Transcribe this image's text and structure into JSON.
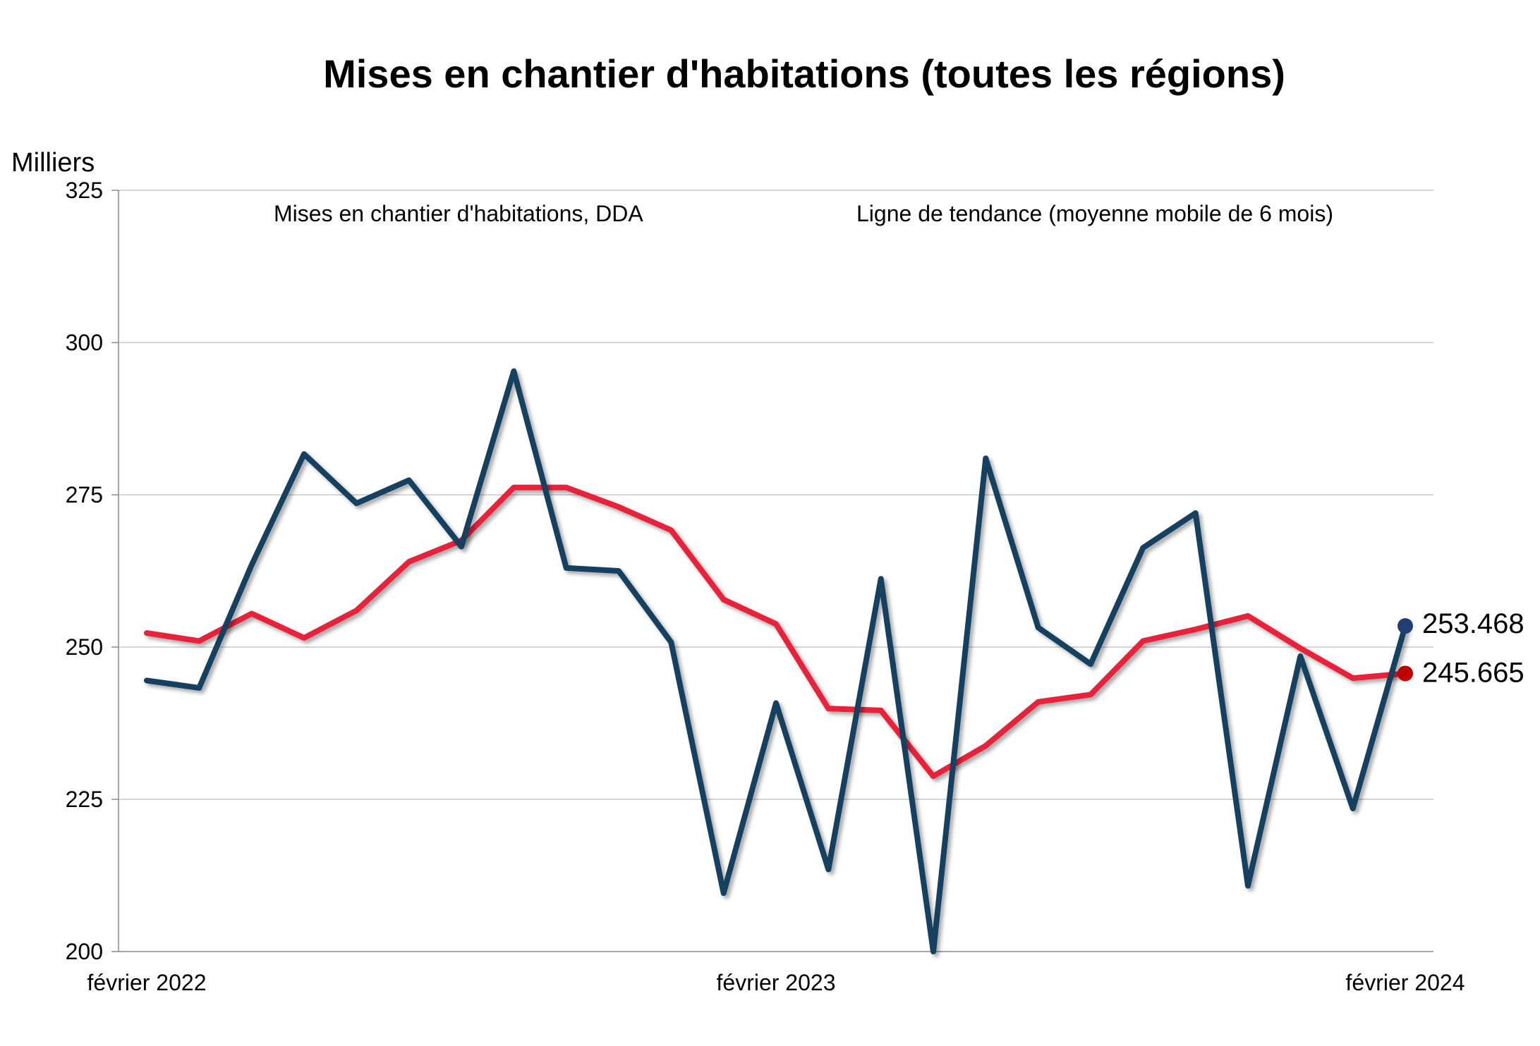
{
  "chart_data": {
    "type": "line",
    "title": "Mises en chantier d'habitations (toutes les régions)",
    "ylabel": "Milliers",
    "ylim": [
      200,
      325
    ],
    "yticks": [
      200,
      225,
      250,
      275,
      300,
      325
    ],
    "x": [
      "2022-02",
      "2022-03",
      "2022-04",
      "2022-05",
      "2022-06",
      "2022-07",
      "2022-08",
      "2022-09",
      "2022-10",
      "2022-11",
      "2022-12",
      "2023-01",
      "2023-02",
      "2023-03",
      "2023-04",
      "2023-05",
      "2023-06",
      "2023-07",
      "2023-08",
      "2023-09",
      "2023-10",
      "2023-11",
      "2023-12",
      "2024-01",
      "2024-02"
    ],
    "xtick_labels": [
      {
        "x": "2022-02",
        "label": "février 2022"
      },
      {
        "x": "2023-02",
        "label": "février 2023"
      },
      {
        "x": "2024-02",
        "label": "février 2024"
      }
    ],
    "grid": true,
    "legend": "top",
    "series": [
      {
        "name": "Mises en chantier d'habitations, DDA",
        "color": "#12405e",
        "values": [
          244.5,
          243.3,
          263.5,
          281.7,
          273.6,
          277.4,
          266.5,
          295.3,
          263.0,
          262.5,
          250.8,
          209.6,
          240.8,
          213.5,
          261.2,
          200.0,
          281.0,
          253.2,
          247.2,
          266.3,
          272.0,
          210.8,
          248.5,
          223.5,
          253.468
        ],
        "end_label": "253.468",
        "end_marker_color": "#1f3f73"
      },
      {
        "name": "Ligne de tendance (moyenne mobile de 6 mois)",
        "color": "#e8223a",
        "values": [
          252.3,
          251.0,
          255.5,
          251.5,
          256.0,
          264.0,
          267.5,
          276.2,
          276.2,
          273.0,
          269.2,
          257.8,
          253.8,
          239.9,
          239.6,
          228.8,
          233.8,
          241.0,
          242.2,
          251.0,
          252.9,
          255.1,
          249.8,
          244.9,
          245.665
        ],
        "end_label": "245.665",
        "end_marker_color": "#c00000"
      }
    ]
  }
}
